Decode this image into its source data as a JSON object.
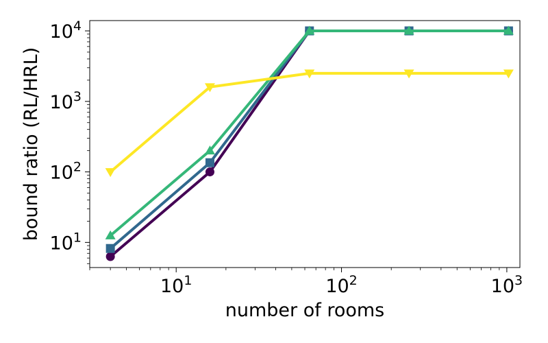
{
  "chart_data": {
    "type": "line",
    "title": "",
    "xlabel": "number of rooms",
    "ylabel": "bound ratio (RL/HRL)",
    "x_scale": "log",
    "y_scale": "log",
    "xlim": [
      3.0,
      1200
    ],
    "ylim": [
      4.4,
      14000
    ],
    "grid": false,
    "legend": "none",
    "x_ticks": [
      {
        "base": "10",
        "exp": "1",
        "value": 10
      },
      {
        "base": "10",
        "exp": "2",
        "value": 100
      },
      {
        "base": "10",
        "exp": "3",
        "value": 1000
      }
    ],
    "y_ticks": [
      {
        "base": "10",
        "exp": "1",
        "value": 10
      },
      {
        "base": "10",
        "exp": "2",
        "value": 100
      },
      {
        "base": "10",
        "exp": "3",
        "value": 1000
      },
      {
        "base": "10",
        "exp": "4",
        "value": 10000
      }
    ],
    "x": [
      4,
      16,
      64,
      256,
      1024
    ],
    "series": [
      {
        "marker": "circle",
        "color": "#440154",
        "values": [
          6.3,
          100,
          10000,
          10000,
          10000
        ]
      },
      {
        "marker": "square",
        "color": "#31688e",
        "values": [
          8.2,
          135,
          10000,
          10000,
          10000
        ]
      },
      {
        "marker": "triangle-up",
        "color": "#35b779",
        "values": [
          12.5,
          200,
          10000,
          10000,
          10000
        ]
      },
      {
        "marker": "triangle-down",
        "color": "#fde725",
        "values": [
          100,
          1600,
          2500,
          2500,
          2500
        ]
      }
    ]
  }
}
